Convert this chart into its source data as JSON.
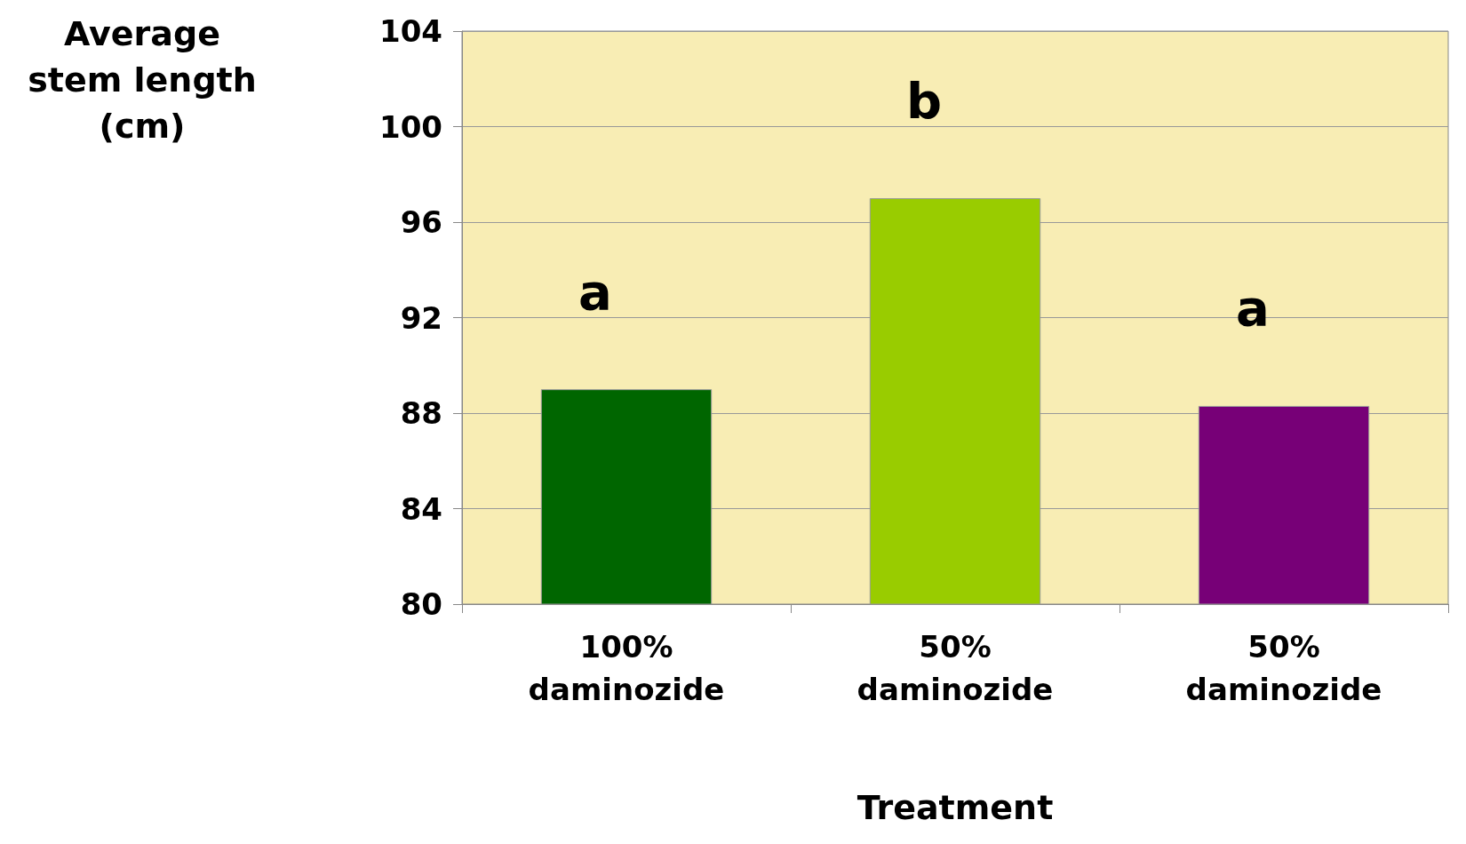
{
  "chart_data": {
    "type": "bar",
    "xlabel": "Treatment",
    "ylabel": "Average\nstem length\n(cm)",
    "categories": [
      "100%\ndaminozide",
      "50%\ndaminozide",
      "50%\ndaminozide"
    ],
    "values": [
      89.0,
      97.0,
      88.3
    ],
    "colors": [
      "#006600",
      "#99cc00",
      "#770077"
    ],
    "ylim": [
      80,
      104
    ],
    "yticks": [
      80,
      84,
      88,
      92,
      96,
      100,
      104
    ],
    "grid": "y",
    "annotations": [
      "a",
      "b",
      "a"
    ]
  }
}
